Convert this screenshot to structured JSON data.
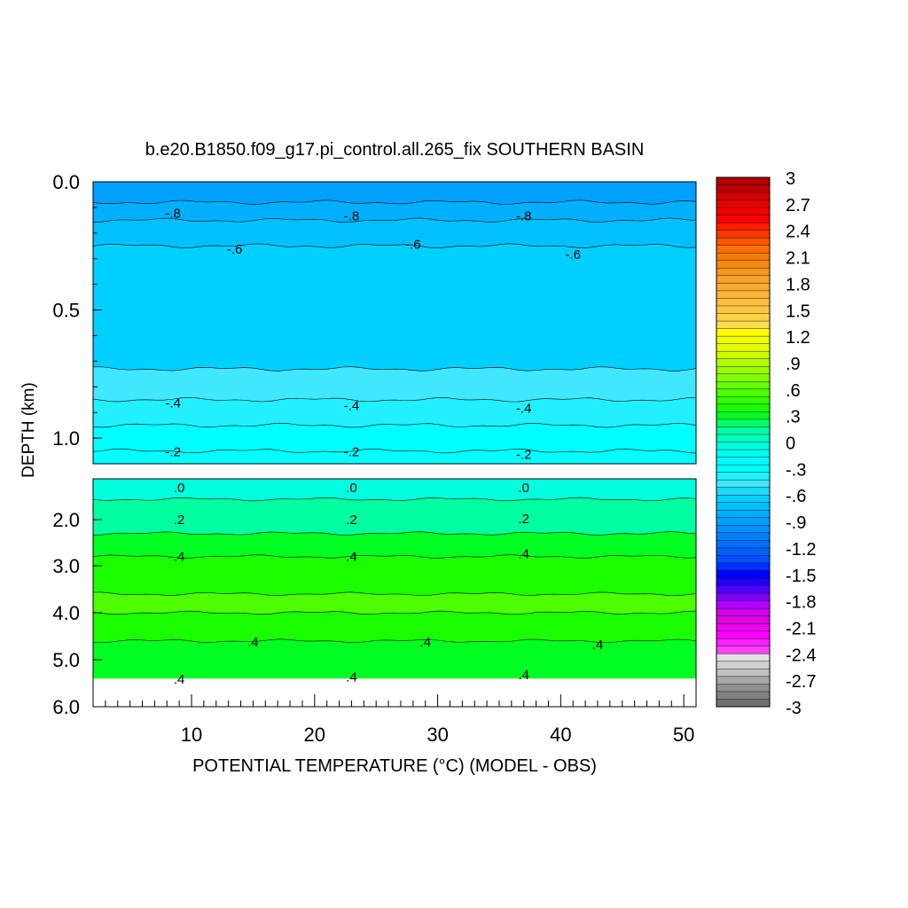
{
  "chart_data": {
    "type": "heatmap",
    "title": "b.e20.B1850.f09_g17.pi_control.all.265_fix SOUTHERN BASIN",
    "xlabel": "POTENTIAL TEMPERATURE (°C) (MODEL - OBS)",
    "ylabel": "DEPTH (km)",
    "xlim": [
      2,
      51
    ],
    "x_ticks": [
      "10",
      "20",
      "30",
      "40",
      "50"
    ],
    "upper_panel": {
      "ylim": [
        0.0,
        1.1
      ],
      "y_ticks": [
        "0.0",
        "0.5",
        "1.0"
      ],
      "bands": [
        {
          "top": 0.0,
          "bottom": 0.08,
          "value": -0.9
        },
        {
          "top": 0.08,
          "bottom": 0.15,
          "value": -0.8
        },
        {
          "top": 0.15,
          "bottom": 0.25,
          "value": -0.7
        },
        {
          "top": 0.25,
          "bottom": 0.73,
          "value": -0.6
        },
        {
          "top": 0.73,
          "bottom": 0.85,
          "value": -0.5
        },
        {
          "top": 0.85,
          "bottom": 0.95,
          "value": -0.4
        },
        {
          "top": 0.95,
          "bottom": 1.05,
          "value": -0.3
        },
        {
          "top": 1.05,
          "bottom": 1.1,
          "value": -0.2
        }
      ],
      "contour_labels": [
        {
          "text": "-.8",
          "x": 8.5,
          "depth": 0.12
        },
        {
          "text": "-.8",
          "x": 23,
          "depth": 0.13
        },
        {
          "text": "-.8",
          "x": 37,
          "depth": 0.13
        },
        {
          "text": "-.6",
          "x": 13.5,
          "depth": 0.26
        },
        {
          "text": "-.6",
          "x": 28,
          "depth": 0.24
        },
        {
          "text": "-.6",
          "x": 41,
          "depth": 0.28
        },
        {
          "text": "-.4",
          "x": 8.5,
          "depth": 0.86
        },
        {
          "text": "-.4",
          "x": 23,
          "depth": 0.87
        },
        {
          "text": "-.4",
          "x": 37,
          "depth": 0.88
        },
        {
          "text": "-.2",
          "x": 8.5,
          "depth": 1.05
        },
        {
          "text": "-.2",
          "x": 23,
          "depth": 1.05
        },
        {
          "text": "-.2",
          "x": 37,
          "depth": 1.06
        }
      ]
    },
    "lower_panel": {
      "ylim": [
        1.0,
        6.0
      ],
      "y_ticks": [
        "2.0",
        "3.0",
        "4.0",
        "5.0",
        "6.0"
      ],
      "bands": [
        {
          "top": 1.0,
          "bottom": 1.5,
          "value": 0.0
        },
        {
          "top": 1.5,
          "bottom": 2.3,
          "value": 0.1
        },
        {
          "top": 2.3,
          "bottom": 2.8,
          "value": 0.3
        },
        {
          "top": 2.8,
          "bottom": 3.6,
          "value": 0.4
        },
        {
          "top": 3.6,
          "bottom": 4.0,
          "value": 0.55
        },
        {
          "top": 4.0,
          "bottom": 4.6,
          "value": 0.4
        },
        {
          "top": 4.6,
          "bottom": 5.4,
          "value": 0.3
        }
      ],
      "no_data_below_depth": 5.4,
      "contour_labels": [
        {
          "text": ".0",
          "x": 9,
          "depth": 1.2
        },
        {
          "text": ".0",
          "x": 23,
          "depth": 1.2
        },
        {
          "text": ".0",
          "x": 37,
          "depth": 1.2
        },
        {
          "text": ".2",
          "x": 9,
          "depth": 1.98
        },
        {
          "text": ".2",
          "x": 23,
          "depth": 1.98
        },
        {
          "text": ".2",
          "x": 37,
          "depth": 1.96
        },
        {
          "text": ".4",
          "x": 9,
          "depth": 2.78
        },
        {
          "text": ".4",
          "x": 23,
          "depth": 2.78
        },
        {
          "text": ".4",
          "x": 37,
          "depth": 2.72
        },
        {
          "text": ".4",
          "x": 15,
          "depth": 4.6
        },
        {
          "text": ".4",
          "x": 29,
          "depth": 4.6
        },
        {
          "text": ".4",
          "x": 43,
          "depth": 4.66
        },
        {
          "text": ".4",
          "x": 9,
          "depth": 5.4
        },
        {
          "text": ".4",
          "x": 23,
          "depth": 5.35
        },
        {
          "text": ".4",
          "x": 37,
          "depth": 5.3
        }
      ]
    },
    "colorbar": {
      "min": -3,
      "max": 3,
      "step": 0.1,
      "tick_labels": [
        "3",
        "2.7",
        "2.4",
        "2.1",
        "1.8",
        "1.5",
        "1.2",
        ".9",
        ".6",
        ".3",
        "0",
        "-.3",
        "-.6",
        "-.9",
        "-1.2",
        "-1.5",
        "-1.8",
        "-2.1",
        "-2.4",
        "-2.7",
        "-3"
      ],
      "colors_top_to_bottom": [
        "#b00000",
        "#c00000",
        "#d40000",
        "#e60000",
        "#f20000",
        "#fb0000",
        "#ff1e00",
        "#ff3a00",
        "#ff5500",
        "#ff6e00",
        "#f57c00",
        "#f68a10",
        "#f79620",
        "#f8a030",
        "#f9aa35",
        "#fab43a",
        "#fbbe3e",
        "#fcc844",
        "#fdd24a",
        "#fedc50",
        "#ffff00",
        "#f2ff00",
        "#e6ff00",
        "#ccff00",
        "#b3ff00",
        "#99ff00",
        "#80ff00",
        "#66ff00",
        "#4dff00",
        "#33ff00",
        "#1aff00",
        "#00ff20",
        "#00ff60",
        "#00ffa0",
        "#00ffc0",
        "#00ffdd",
        "#00fff0",
        "#00ffff",
        "#00ffff",
        "#20f0ff",
        "#40e8ff",
        "#20d8ff",
        "#00d0ff",
        "#00c0ff",
        "#00b0ff",
        "#00a0ff",
        "#0090ff",
        "#0080ff",
        "#0070ff",
        "#0060ff",
        "#0050ff",
        "#0030ff",
        "#0000ff",
        "#2000ff",
        "#5000ff",
        "#8000ff",
        "#b000ff",
        "#d000f0",
        "#e000e0",
        "#f000f0",
        "#ff00ff",
        "#ff20ff",
        "#ff40ff",
        "#e0e0e0",
        "#d0d0d0",
        "#c0c0c0",
        "#a8a8a8",
        "#909090",
        "#808080",
        "#707070"
      ]
    }
  }
}
